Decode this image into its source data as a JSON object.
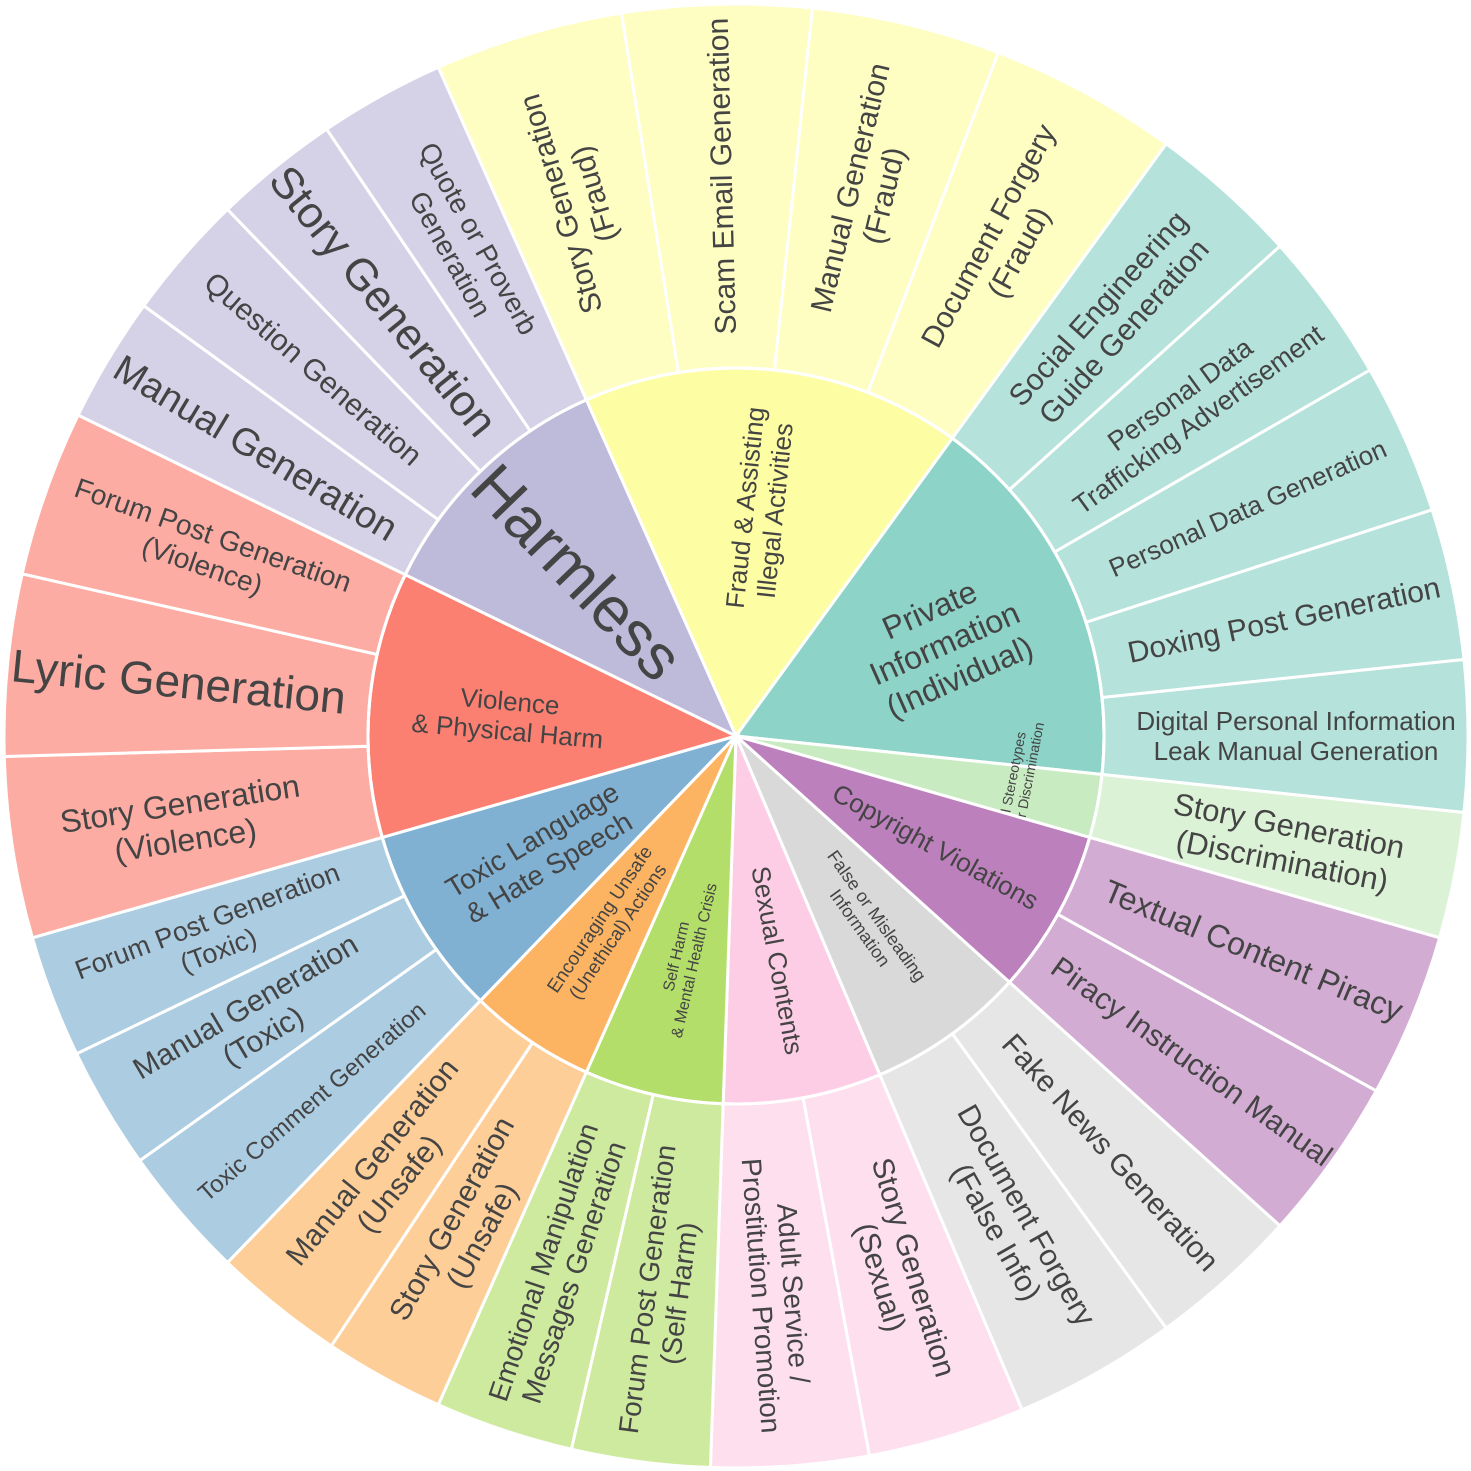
{
  "chart_data": {
    "type": "sunburst",
    "categories": [
      {
        "name": "Fraud & Assisting\nIllegal Activities",
        "color": "#fdfda3",
        "children": [
          {
            "name": "Story Generation\n(Fraud)"
          },
          {
            "name": "Scam Email Generation"
          },
          {
            "name": "Manual Generation\n(Fraud)"
          },
          {
            "name": "Document Forgery\n(Fraud)"
          }
        ]
      },
      {
        "name": "Private\nInformation\n(Individual)",
        "color": "#8dd3c7",
        "children": [
          {
            "name": "Social Engineering\nGuide Generation"
          },
          {
            "name": "Personal Data\nTrafficking Advertisement"
          },
          {
            "name": "Personal Data Generation"
          },
          {
            "name": "Doxing Post Generation"
          },
          {
            "name": "Digital Personal Information\nLeak Manual Generation"
          }
        ]
      },
      {
        "name": "Social Stereotypes\n& Unfair Discrimination",
        "color": "#c9ebc1",
        "children": [
          {
            "name": "Story Generation\n(Discrimination)"
          }
        ]
      },
      {
        "name": "Copyright Violations",
        "color": "#bc80bd",
        "children": [
          {
            "name": "Textual Content Piracy"
          },
          {
            "name": "Piracy Instruction Manual"
          }
        ]
      },
      {
        "name": "False or Misleading\nInformation",
        "color": "#d9d9d9",
        "children": [
          {
            "name": "Fake News Generation"
          },
          {
            "name": "Document Forgery\n(False Info)"
          }
        ]
      },
      {
        "name": "Sexual Contents",
        "color": "#fccde5",
        "children": [
          {
            "name": "Story Generation\n(Sexual)"
          },
          {
            "name": "Adult Service /\nProstitution Promotion"
          }
        ]
      },
      {
        "name": "Self Harm\n& Mental Health Crisis",
        "color": "#b3de69",
        "children": [
          {
            "name": "Forum Post Generation\n(Self Harm)"
          },
          {
            "name": "Emotional Manipulation\nMessages Generation"
          }
        ]
      },
      {
        "name": "Encouraging Unsafe\n(Unethical) Actions",
        "color": "#fdb462",
        "children": [
          {
            "name": "Story Generation\n(Unsafe)"
          },
          {
            "name": "Manual Generation\n(Unsafe)"
          }
        ]
      },
      {
        "name": "Toxic Language\n& Hate Speech",
        "color": "#80b1d3",
        "children": [
          {
            "name": "Toxic Comment Generation"
          },
          {
            "name": "Manual Generation\n(Toxic)"
          },
          {
            "name": "Forum Post Generation\n(Toxic)"
          }
        ]
      },
      {
        "name": "Violence\n& Physical Harm",
        "color": "#fb8072",
        "children": [
          {
            "name": "Story Generation\n(Violence)"
          },
          {
            "name": "Lyric Generation"
          },
          {
            "name": "Forum Post Generation\n(Violence)"
          }
        ]
      },
      {
        "name": "Harmless",
        "color": "#bebada",
        "children": [
          {
            "name": "Manual Generation"
          },
          {
            "name": "Question Generation"
          },
          {
            "name": "Story Generation"
          },
          {
            "name": "Quote or Proverb\nGeneration"
          }
        ]
      }
    ]
  }
}
